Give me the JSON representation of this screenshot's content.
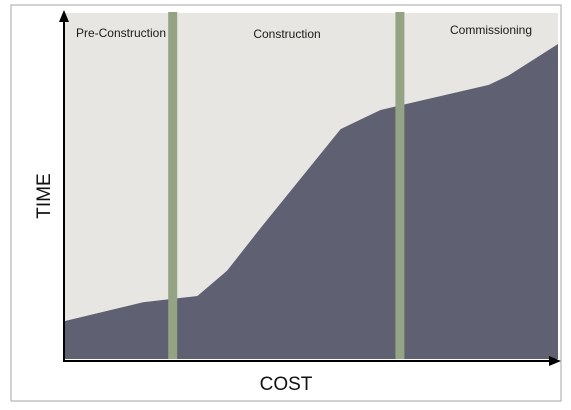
{
  "chart_data": {
    "type": "area",
    "xlabel": "COST",
    "ylabel": "TIME",
    "xlim": [
      0,
      100
    ],
    "ylim": [
      0,
      100
    ],
    "grid": false,
    "legend": "none",
    "series": [
      {
        "x": [
          0,
          16,
          27,
          33,
          40,
          56,
          64,
          86,
          90,
          100
        ],
        "values": [
          12,
          18,
          20,
          28,
          42,
          73,
          79,
          87,
          90,
          100
        ]
      }
    ],
    "phases": [
      {
        "label": "Pre-Construction",
        "x_start": 0,
        "x_end": 22
      },
      {
        "label": "Construction",
        "x_start": 22,
        "x_end": 68
      },
      {
        "label": "Commissioning",
        "x_start": 68,
        "x_end": 100
      }
    ],
    "phase_dividers": [
      22,
      68
    ]
  },
  "colors": {
    "area_fill": "#5f6172",
    "plot_background": "#e8e6e2",
    "divider": "#93a384",
    "axis": "#000000",
    "frame": "#a5a5a5"
  }
}
